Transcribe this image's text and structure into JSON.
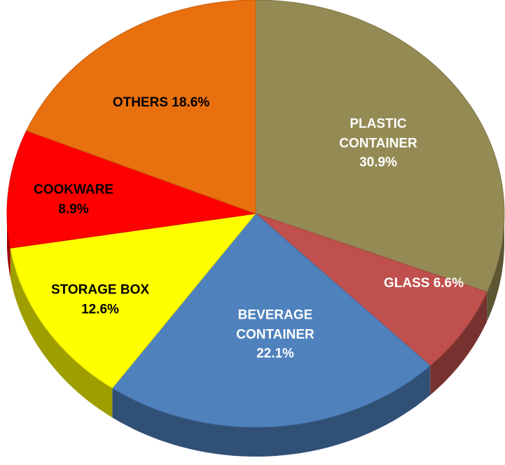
{
  "chart_data": {
    "type": "pie",
    "categories": [
      "PLASTIC CONTAINER",
      "GLASS",
      "BEVERAGE CONTAINER",
      "STORAGE BOX",
      "COOKWARE",
      "OTHERS"
    ],
    "values": [
      30.9,
      6.6,
      22.1,
      12.6,
      8.9,
      18.6
    ],
    "value_labels": [
      "30.9%",
      "6.6%",
      "22.1%",
      "12.6%",
      "8.9%",
      "18.6%"
    ],
    "colors": [
      "#948a54",
      "#c0504d",
      "#4f81bd",
      "#ffff00",
      "#ff0000",
      "#e8700e"
    ],
    "label_colors": [
      "#ffffff",
      "#ffffff",
      "#ffffff",
      "#000000",
      "#000000",
      "#000000"
    ]
  }
}
